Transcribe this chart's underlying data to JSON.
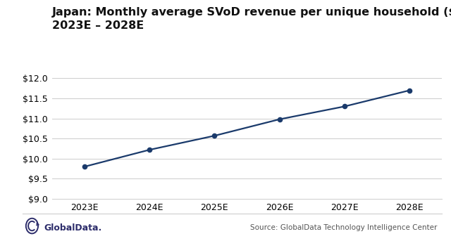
{
  "x_labels": [
    "2023E",
    "2024E",
    "2025E",
    "2026E",
    "2027E",
    "2028E"
  ],
  "x_values": [
    0,
    1,
    2,
    3,
    4,
    5
  ],
  "y_values": [
    9.8,
    10.22,
    10.57,
    10.98,
    11.3,
    11.7
  ],
  "ylim": [
    9.0,
    12.0
  ],
  "yticks": [
    9.0,
    9.5,
    10.0,
    10.5,
    11.0,
    11.5,
    12.0
  ],
  "line_color": "#1a3a6b",
  "marker_color": "#1a3a6b",
  "title_line1": "Japan: Monthly average SVoD revenue per unique household ($),",
  "title_line2": "2023E – 2028E",
  "source_text": "Source: GlobalData Technology Intelligence Center",
  "brand_text": "GlobalData.",
  "background_color": "#ffffff",
  "grid_color": "#cccccc",
  "title_fontsize": 11.5,
  "tick_fontsize": 9,
  "source_fontsize": 7.5,
  "brand_color": "#2d2d6b"
}
